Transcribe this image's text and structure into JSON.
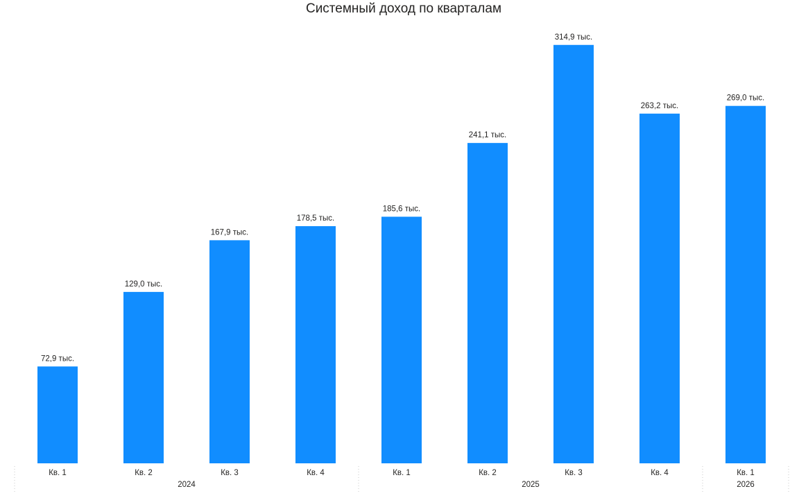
{
  "chart_data": {
    "type": "bar",
    "title": "Системный доход по кварталам",
    "categories": [
      "Кв. 1",
      "Кв. 2",
      "Кв. 3",
      "Кв. 4",
      "Кв. 1",
      "Кв. 2",
      "Кв. 3",
      "Кв. 4",
      "Кв. 1"
    ],
    "years": [
      {
        "label": "2024",
        "count": 4
      },
      {
        "label": "2025",
        "count": 4
      },
      {
        "label": "2026",
        "count": 1
      }
    ],
    "values": [
      72.9,
      129.0,
      167.9,
      178.5,
      185.6,
      241.1,
      314.9,
      263.2,
      269.0
    ],
    "data_labels": [
      "72,9 тыс.",
      "129,0 тыс.",
      "167,9 тыс.",
      "178,5 тыс.",
      "185,6 тыс.",
      "241,1 тыс.",
      "314,9 тыс.",
      "263,2 тыс.",
      "269,0 тыс."
    ],
    "unit": "тыс.",
    "ylim": [
      0,
      320
    ],
    "xlabel": "",
    "ylabel": "",
    "grid": false,
    "legend": "none",
    "bar_color": "#118DFF"
  }
}
